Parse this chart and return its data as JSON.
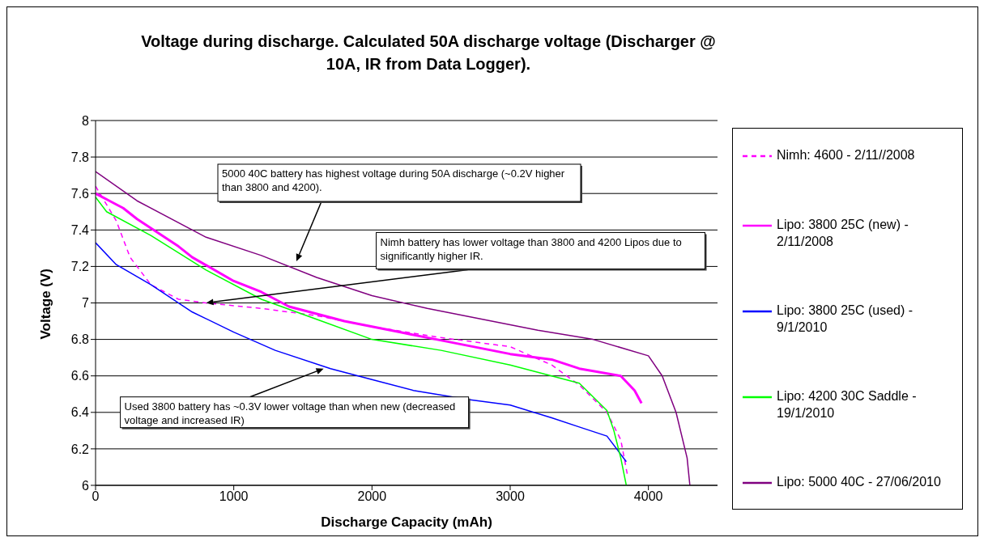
{
  "chart_data": {
    "type": "line",
    "title": "Voltage during discharge. Calculated 50A discharge voltage (Discharger @ 10A, IR from Data Logger).",
    "xlabel": "Discharge Capacity (mAh)",
    "ylabel": "Voltage (V)",
    "xlim": [
      0,
      4500
    ],
    "xticks": [
      0,
      1000,
      2000,
      3000,
      4000
    ],
    "ylim": [
      6,
      8
    ],
    "yticks": [
      6,
      6.2,
      6.4,
      6.6,
      6.8,
      7,
      7.2,
      7.4,
      7.6,
      7.8,
      8
    ],
    "grid": "y",
    "legend": "right",
    "marker": "none",
    "series": [
      {
        "name": "Nimh: 4600 - 2/11//2008",
        "color": "#ff00ff",
        "line_style": "dashed",
        "x": [
          0,
          150,
          250,
          400,
          600,
          800,
          1200,
          1600,
          2000,
          2500,
          3000,
          3300,
          3500,
          3700,
          3800,
          3850
        ],
        "values": [
          7.64,
          7.45,
          7.25,
          7.1,
          7.02,
          7.0,
          6.97,
          6.93,
          6.87,
          6.81,
          6.76,
          6.66,
          6.55,
          6.4,
          6.25,
          6.05
        ]
      },
      {
        "name": "Lipo: 3800 25C (new) - 2/11/2008",
        "color": "#ff00ff",
        "line_style": "solid",
        "x": [
          0,
          100,
          200,
          300,
          400,
          500,
          600,
          700,
          1000,
          1200,
          1400,
          1800,
          2200,
          2600,
          3000,
          3300,
          3500,
          3800,
          3900,
          3950
        ],
        "values": [
          7.6,
          7.56,
          7.52,
          7.46,
          7.41,
          7.36,
          7.31,
          7.25,
          7.12,
          7.06,
          6.98,
          6.9,
          6.84,
          6.78,
          6.72,
          6.69,
          6.64,
          6.6,
          6.52,
          6.45
        ]
      },
      {
        "name": "Lipo: 3800 25C (used) - 9/1/2010",
        "color": "#0000ff",
        "line_style": "solid",
        "x": [
          0,
          150,
          400,
          700,
          1000,
          1300,
          1700,
          2000,
          2300,
          2700,
          3000,
          3300,
          3500,
          3700,
          3840
        ],
        "values": [
          7.33,
          7.21,
          7.1,
          6.95,
          6.84,
          6.74,
          6.64,
          6.58,
          6.52,
          6.47,
          6.44,
          6.37,
          6.32,
          6.27,
          6.13
        ]
      },
      {
        "name": "Lipo: 4200 30C Saddle - 19/1/2010",
        "color": "#00ff00",
        "line_style": "solid",
        "x": [
          0,
          80,
          400,
          800,
          1200,
          1600,
          2000,
          2500,
          3000,
          3500,
          3700,
          3750,
          3800,
          3840
        ],
        "values": [
          7.58,
          7.5,
          7.37,
          7.18,
          7.02,
          6.91,
          6.8,
          6.74,
          6.66,
          6.56,
          6.41,
          6.3,
          6.15,
          6.0
        ]
      },
      {
        "name": "Lipo: 5000 40C - 27/06/2010",
        "color": "#800080",
        "line_style": "solid",
        "x": [
          0,
          300,
          800,
          1200,
          1600,
          2000,
          2400,
          2800,
          3200,
          3600,
          4000,
          4100,
          4200,
          4280,
          4300
        ],
        "values": [
          7.72,
          7.56,
          7.36,
          7.26,
          7.14,
          7.04,
          6.97,
          6.91,
          6.85,
          6.8,
          6.71,
          6.6,
          6.4,
          6.15,
          6.0
        ]
      }
    ],
    "annotations": [
      "5000 40C battery has highest voltage during 50A discharge (~0.2V higher than 3800 and 4200).",
      {
        "text": "Nimh battery has lower voltage than 3800 and 4200 Lipos due to significantly higher IR.",
        "x": 800,
        "y": 7.0
      },
      {
        "text": "Used 3800 battery has ~0.3V lower voltage than when new (decreased voltage and increased IR)",
        "x": 1650,
        "y": 6.64
      }
    ]
  }
}
